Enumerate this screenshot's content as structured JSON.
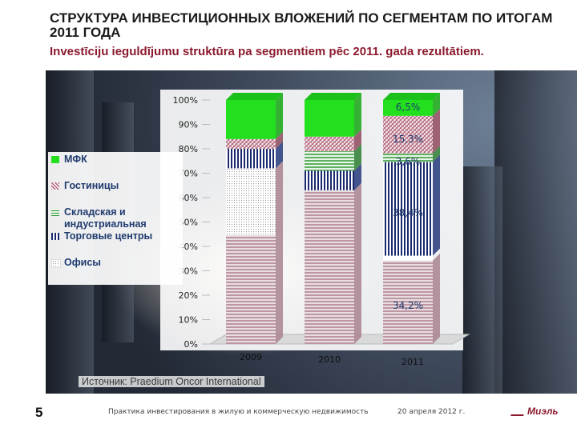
{
  "slide": {
    "title": "СТРУКТУРА ИНВЕСТИЦИОННЫХ ВЛОЖЕНИЙ ПО СЕГМЕНТАМ ПО ИТОГАМ 2011 ГОДА",
    "subtitle": "Investīciju ieguldījumu struktūra pa segmentiem pēc 2011. gada rezultātiem.",
    "source": "Источник: Praedium Oncor International",
    "page_number": "5",
    "footer_text": "Практика инвестирования в жилую и коммерческую недвижимость",
    "footer_date": "20 апреля 2012 г.",
    "logo_text": "Миэль"
  },
  "colors": {
    "mfk": "#22e01e",
    "hotels": "#c9a0a8",
    "warehouse": "#2f9a36",
    "retail": "#1b2a6e",
    "offices": "#c8a6b0",
    "accent": "#8b1a2e"
  },
  "legend": [
    {
      "key": "mfk",
      "label": "МФК"
    },
    {
      "key": "hotels",
      "label": "Гостиницы"
    },
    {
      "key": "warehouse",
      "label": "Складская и индустриальная"
    },
    {
      "key": "retail",
      "label": "Торговые центры"
    },
    {
      "key": "offices",
      "label": "Офисы"
    }
  ],
  "chart_data": {
    "type": "bar",
    "stacked": true,
    "title": "",
    "xlabel": "",
    "ylabel": "",
    "ylim": [
      0,
      100
    ],
    "yticks": [
      "0%",
      "10%",
      "20%",
      "30%",
      "40%",
      "50%",
      "60%",
      "70%",
      "80%",
      "90%",
      "100%"
    ],
    "categories": [
      "2009",
      "2010",
      "2011"
    ],
    "series": [
      {
        "name": "Офисы",
        "key": "offices",
        "values": [
          72,
          63,
          34.2
        ]
      },
      {
        "name": "Торговые центры",
        "key": "retail",
        "values": [
          8,
          8,
          38.4
        ]
      },
      {
        "name": "Складская и индустриальная",
        "key": "warehouse",
        "values": [
          0,
          8,
          3.6
        ]
      },
      {
        "name": "Гостиницы",
        "key": "hotels",
        "values": [
          4,
          6,
          15.3
        ]
      },
      {
        "name": "МФК",
        "key": "mfk",
        "values": [
          16,
          15,
          6.5
        ]
      }
    ],
    "data_labels": [
      "6,5%",
      "15,3%",
      "3,6%",
      "38,4%",
      "34,2%"
    ],
    "white_gap_2011": 2
  }
}
